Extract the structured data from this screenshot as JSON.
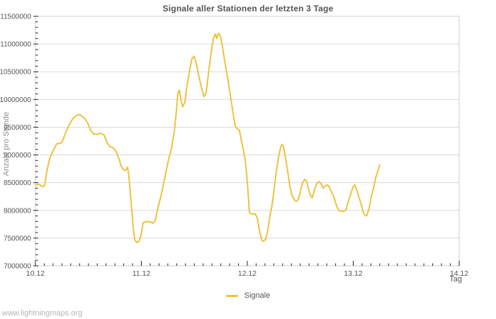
{
  "footer": "www.lightningmaps.org",
  "colors": {
    "line": "#edc240",
    "grid": "#d9d9d9",
    "border": "#cccccc",
    "tick": "#222222",
    "tick_label": "#545454",
    "title": "#545454",
    "axis_title": "#8f8f8f",
    "watermark": "#b5b5b5",
    "background": "#ffffff"
  },
  "chart_data": {
    "type": "line",
    "title": "Signale aller Stationen der letzten 3 Tage",
    "xlabel": "Tag",
    "ylabel": "Anzahl pro Stunde",
    "legend_position": "bottom-center",
    "grid": "horizontal-only",
    "xlim": [
      0,
      4
    ],
    "ylim": [
      7000000,
      11500000
    ],
    "y_tick_step": 500000,
    "y_minor_step": 100000,
    "x_minor_step": 0.0833333,
    "x_ticks": [
      {
        "value": 0,
        "label": "10.12"
      },
      {
        "value": 1,
        "label": "11.12"
      },
      {
        "value": 2,
        "label": "12.12"
      },
      {
        "value": 3,
        "label": "13.12"
      },
      {
        "value": 4,
        "label": "14.12"
      }
    ],
    "y_ticks": [
      {
        "value": 7000000,
        "label": "7000000"
      },
      {
        "value": 7500000,
        "label": "7500000"
      },
      {
        "value": 8000000,
        "label": "8000000"
      },
      {
        "value": 8500000,
        "label": "8500000"
      },
      {
        "value": 9000000,
        "label": "9000000"
      },
      {
        "value": 9500000,
        "label": "9500000"
      },
      {
        "value": 10000000,
        "label": "10000000"
      },
      {
        "value": 10500000,
        "label": "10500000"
      },
      {
        "value": 11000000,
        "label": "11000000"
      },
      {
        "value": 11500000,
        "label": "11500000"
      }
    ],
    "series": [
      {
        "name": "Signale",
        "color": "#edc240",
        "points": [
          [
            0.0,
            8460000
          ],
          [
            0.033,
            8470000
          ],
          [
            0.067,
            8430000
          ],
          [
            0.087,
            8450000
          ],
          [
            0.107,
            8700000
          ],
          [
            0.134,
            8930000
          ],
          [
            0.167,
            9080000
          ],
          [
            0.201,
            9200000
          ],
          [
            0.234,
            9210000
          ],
          [
            0.254,
            9240000
          ],
          [
            0.288,
            9420000
          ],
          [
            0.321,
            9550000
          ],
          [
            0.355,
            9660000
          ],
          [
            0.388,
            9710000
          ],
          [
            0.415,
            9730000
          ],
          [
            0.441,
            9700000
          ],
          [
            0.468,
            9650000
          ],
          [
            0.495,
            9570000
          ],
          [
            0.522,
            9440000
          ],
          [
            0.548,
            9380000
          ],
          [
            0.582,
            9370000
          ],
          [
            0.615,
            9390000
          ],
          [
            0.649,
            9360000
          ],
          [
            0.676,
            9220000
          ],
          [
            0.702,
            9150000
          ],
          [
            0.736,
            9130000
          ],
          [
            0.763,
            9050000
          ],
          [
            0.789,
            8930000
          ],
          [
            0.809,
            8800000
          ],
          [
            0.829,
            8740000
          ],
          [
            0.85,
            8720000
          ],
          [
            0.87,
            8780000
          ],
          [
            0.883,
            8600000
          ],
          [
            0.896,
            8300000
          ],
          [
            0.91,
            8000000
          ],
          [
            0.923,
            7700000
          ],
          [
            0.937,
            7470000
          ],
          [
            0.957,
            7420000
          ],
          [
            0.977,
            7440000
          ],
          [
            0.997,
            7560000
          ],
          [
            1.017,
            7780000
          ],
          [
            1.05,
            7800000
          ],
          [
            1.084,
            7790000
          ],
          [
            1.11,
            7770000
          ],
          [
            1.13,
            7810000
          ],
          [
            1.157,
            8050000
          ],
          [
            1.184,
            8250000
          ],
          [
            1.204,
            8430000
          ],
          [
            1.231,
            8680000
          ],
          [
            1.257,
            8920000
          ],
          [
            1.284,
            9120000
          ],
          [
            1.311,
            9420000
          ],
          [
            1.331,
            9800000
          ],
          [
            1.344,
            10100000
          ],
          [
            1.358,
            10170000
          ],
          [
            1.378,
            9950000
          ],
          [
            1.391,
            9870000
          ],
          [
            1.411,
            9950000
          ],
          [
            1.431,
            10250000
          ],
          [
            1.458,
            10550000
          ],
          [
            1.478,
            10740000
          ],
          [
            1.498,
            10780000
          ],
          [
            1.518,
            10650000
          ],
          [
            1.545,
            10400000
          ],
          [
            1.572,
            10180000
          ],
          [
            1.592,
            10050000
          ],
          [
            1.612,
            10120000
          ],
          [
            1.632,
            10450000
          ],
          [
            1.659,
            10850000
          ],
          [
            1.679,
            11100000
          ],
          [
            1.699,
            11180000
          ],
          [
            1.712,
            11100000
          ],
          [
            1.726,
            11190000
          ],
          [
            1.746,
            11150000
          ],
          [
            1.766,
            10950000
          ],
          [
            1.786,
            10700000
          ],
          [
            1.806,
            10480000
          ],
          [
            1.826,
            10250000
          ],
          [
            1.846,
            10000000
          ],
          [
            1.866,
            9750000
          ],
          [
            1.886,
            9520000
          ],
          [
            1.906,
            9470000
          ],
          [
            1.926,
            9440000
          ],
          [
            1.946,
            9250000
          ],
          [
            1.967,
            9050000
          ],
          [
            1.987,
            8800000
          ],
          [
            2.007,
            8350000
          ],
          [
            2.02,
            7960000
          ],
          [
            2.047,
            7930000
          ],
          [
            2.074,
            7940000
          ],
          [
            2.094,
            7860000
          ],
          [
            2.114,
            7650000
          ],
          [
            2.134,
            7480000
          ],
          [
            2.147,
            7440000
          ],
          [
            2.161,
            7460000
          ],
          [
            2.174,
            7480000
          ],
          [
            2.194,
            7650000
          ],
          [
            2.214,
            7900000
          ],
          [
            2.234,
            8100000
          ],
          [
            2.254,
            8400000
          ],
          [
            2.274,
            8700000
          ],
          [
            2.294,
            8950000
          ],
          [
            2.314,
            9130000
          ],
          [
            2.328,
            9190000
          ],
          [
            2.341,
            9150000
          ],
          [
            2.361,
            8950000
          ],
          [
            2.381,
            8700000
          ],
          [
            2.401,
            8450000
          ],
          [
            2.421,
            8280000
          ],
          [
            2.441,
            8200000
          ],
          [
            2.462,
            8160000
          ],
          [
            2.482,
            8200000
          ],
          [
            2.502,
            8350000
          ],
          [
            2.522,
            8500000
          ],
          [
            2.542,
            8560000
          ],
          [
            2.562,
            8520000
          ],
          [
            2.582,
            8350000
          ],
          [
            2.602,
            8250000
          ],
          [
            2.615,
            8230000
          ],
          [
            2.635,
            8380000
          ],
          [
            2.656,
            8480000
          ],
          [
            2.676,
            8520000
          ],
          [
            2.696,
            8480000
          ],
          [
            2.716,
            8400000
          ],
          [
            2.736,
            8440000
          ],
          [
            2.756,
            8460000
          ],
          [
            2.776,
            8420000
          ],
          [
            2.796,
            8320000
          ],
          [
            2.816,
            8250000
          ],
          [
            2.836,
            8120000
          ],
          [
            2.856,
            8020000
          ],
          [
            2.876,
            7990000
          ],
          [
            2.903,
            7980000
          ],
          [
            2.93,
            8000000
          ],
          [
            2.957,
            8180000
          ],
          [
            2.977,
            8300000
          ],
          [
            2.997,
            8420000
          ],
          [
            3.017,
            8460000
          ],
          [
            3.037,
            8350000
          ],
          [
            3.057,
            8220000
          ],
          [
            3.077,
            8100000
          ],
          [
            3.097,
            7950000
          ],
          [
            3.117,
            7900000
          ],
          [
            3.13,
            7910000
          ],
          [
            3.151,
            8050000
          ],
          [
            3.171,
            8250000
          ],
          [
            3.191,
            8400000
          ],
          [
            3.211,
            8580000
          ],
          [
            3.231,
            8700000
          ],
          [
            3.251,
            8820000
          ]
        ]
      }
    ]
  }
}
